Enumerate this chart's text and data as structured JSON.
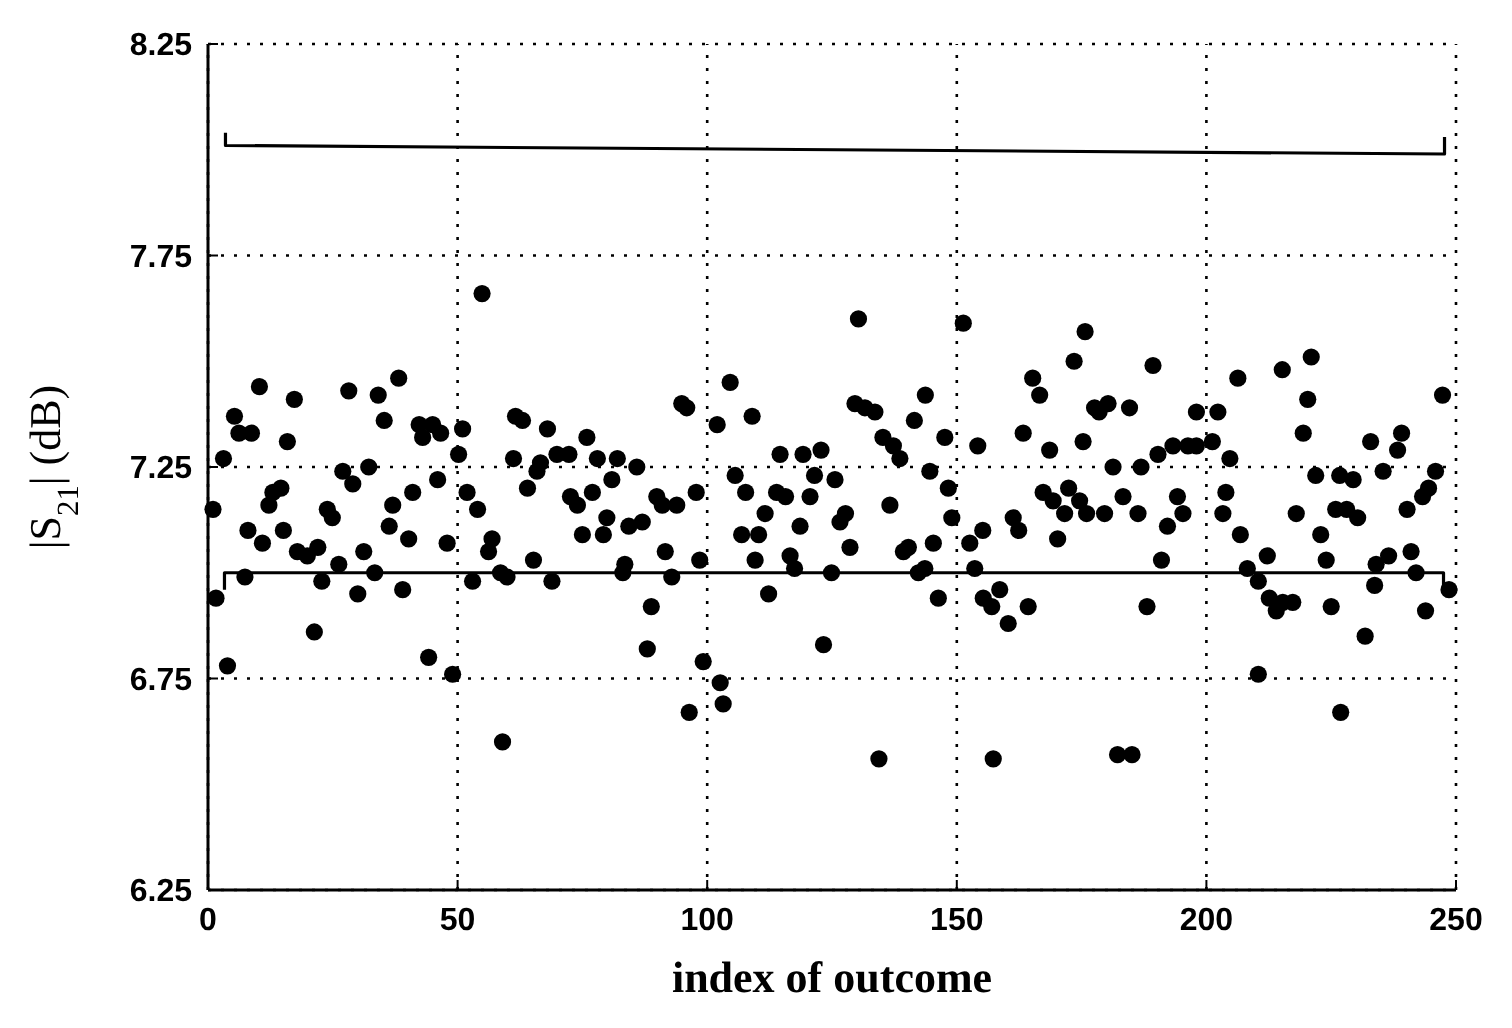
{
  "chart_data": {
    "type": "scatter",
    "xlabel": "index of outcome",
    "ylabel": "|S$_{21}$| (dB)",
    "xlim": [
      0,
      250
    ],
    "ylim": [
      6.25,
      8.25
    ],
    "xticks": [
      0,
      50,
      100,
      150,
      200,
      250
    ],
    "yticks": [
      6.25,
      6.75,
      7.25,
      7.75,
      8.25
    ],
    "grid": true,
    "marker": "circle",
    "series": [
      {
        "color": "#000000",
        "x": [
          1.0,
          1.6,
          3.1,
          3.9,
          5.3,
          6.2,
          8.7,
          7.4,
          8.0,
          10.3,
          10.9,
          12.2,
          13.0,
          14.6,
          15.1,
          15.9,
          17.3,
          17.9,
          19.9,
          22.0,
          21.3,
          22.8,
          23.9,
          24.9,
          26.2,
          28.2,
          27.0,
          29.0,
          30.0,
          31.2,
          32.2,
          33.4,
          34.1,
          35.3,
          37.0,
          36.3,
          38.2,
          39.0,
          40.2,
          41.0,
          42.3,
          43.0,
          45.0,
          46.6,
          44.2,
          46.0,
          47.9,
          49.0,
          54.9,
          51.0,
          50.2,
          51.9,
          54.0,
          53.0,
          56.9,
          56.2,
          58.6,
          59.9,
          59.0,
          61.6,
          63.0,
          61.2,
          64.0,
          65.9,
          66.6,
          68.0,
          65.2,
          68.9,
          69.9,
          72.3,
          72.6,
          74.0,
          75.9,
          75.0,
          77.0,
          78.0,
          79.9,
          79.2,
          80.9,
          82.0,
          83.5,
          83.1,
          84.3,
          85.9,
          87.0,
          88.8,
          88.0,
          89.9,
          91.0,
          93.9,
          91.6,
          92.9,
          94.9,
          95.9,
          97.8,
          98.5,
          99.2,
          96.4,
          102.6,
          103.2,
          104.6,
          102.0,
          109.0,
          105.6,
          107.7,
          106.9,
          110.3,
          111.6,
          109.6,
          112.3,
          114.6,
          113.9,
          115.7,
          118.6,
          116.6,
          117.5,
          119.2,
          120.6,
          121.5,
          122.8,
          123.3,
          124.9,
          125.6,
          126.6,
          127.7,
          128.6,
          130.3,
          129.6,
          131.6,
          133.6,
          134.4,
          135.2,
          137.3,
          138.6,
          136.6,
          139.3,
          140.3,
          141.5,
          143.7,
          142.3,
          143.6,
          144.6,
          145.3,
          146.3,
          147.6,
          148.3,
          149.0,
          151.3,
          154.2,
          152.6,
          155.2,
          153.6,
          155.3,
          158.6,
          157.0,
          160.3,
          157.3,
          163.3,
          165.2,
          166.6,
          168.6,
          161.3,
          162.4,
          164.3,
          167.3,
          169.3,
          172.4,
          171.6,
          170.2,
          173.5,
          175.7,
          174.6,
          176.0,
          175.3,
          177.6,
          178.5,
          180.3,
          179.6,
          181.3,
          182.2,
          185.1,
          183.3,
          184.6,
          186.3,
          186.9,
          188.1,
          189.3,
          190.3,
          191.0,
          192.2,
          193.3,
          194.2,
          195.3,
          196.3,
          198.0,
          198.0,
          202.3,
          201.2,
          204.7,
          206.3,
          203.9,
          203.3,
          206.8,
          208.2,
          210.4,
          212.2,
          212.6,
          214.0,
          217.3,
          215.3,
          210.4,
          215.2,
          221.0,
          220.3,
          219.4,
          218.0,
          221.9,
          222.9,
          224.0,
          225.0,
          226.9,
          225.9,
          226.7,
          229.4,
          228.1,
          230.3,
          231.8,
          232.9,
          233.7,
          234.0,
          235.4,
          236.5,
          238.3,
          239.1,
          240.2,
          241.0,
          242.0,
          243.9,
          243.3,
          244.5,
          245.9,
          247.3,
          248.6
        ],
        "values": [
          7.15,
          6.94,
          7.27,
          6.78,
          7.37,
          7.33,
          7.33,
          6.99,
          7.1,
          7.44,
          7.07,
          7.16,
          7.19,
          7.2,
          7.1,
          7.31,
          7.41,
          7.05,
          7.04,
          7.06,
          6.86,
          6.98,
          7.15,
          7.13,
          7.02,
          7.43,
          7.24,
          7.21,
          6.95,
          7.05,
          7.25,
          7.0,
          7.42,
          7.36,
          7.16,
          7.11,
          7.46,
          6.96,
          7.08,
          7.19,
          7.35,
          7.32,
          7.35,
          7.33,
          6.8,
          7.22,
          7.07,
          6.76,
          7.66,
          7.34,
          7.28,
          7.19,
          7.15,
          6.98,
          7.08,
          7.05,
          7.0,
          6.99,
          6.6,
          7.37,
          7.36,
          7.27,
          7.2,
          7.24,
          7.26,
          7.34,
          7.03,
          6.98,
          7.28,
          7.28,
          7.18,
          7.16,
          7.32,
          7.09,
          7.19,
          7.27,
          7.13,
          7.09,
          7.22,
          7.27,
          7.02,
          7.0,
          7.11,
          7.25,
          7.12,
          6.92,
          6.82,
          7.18,
          7.16,
          7.16,
          7.05,
          6.99,
          7.4,
          7.39,
          7.19,
          7.03,
          6.79,
          6.67,
          6.74,
          6.69,
          7.45,
          7.35,
          7.37,
          7.23,
          7.19,
          7.09,
          7.09,
          7.14,
          7.03,
          6.95,
          7.28,
          7.19,
          7.18,
          7.11,
          7.04,
          7.01,
          7.28,
          7.18,
          7.23,
          7.29,
          6.83,
          7.0,
          7.22,
          7.12,
          7.14,
          7.06,
          7.6,
          7.4,
          7.39,
          7.38,
          6.56,
          7.32,
          7.3,
          7.27,
          7.16,
          7.05,
          7.06,
          7.36,
          7.42,
          7.0,
          7.01,
          7.24,
          7.07,
          6.94,
          7.32,
          7.2,
          7.13,
          7.59,
          7.3,
          7.07,
          7.1,
          7.01,
          6.94,
          6.96,
          6.92,
          6.88,
          6.56,
          7.33,
          7.46,
          7.42,
          7.29,
          7.13,
          7.1,
          6.92,
          7.19,
          7.17,
          7.2,
          7.14,
          7.08,
          7.5,
          7.57,
          7.17,
          7.14,
          7.31,
          7.39,
          7.38,
          7.4,
          7.14,
          7.25,
          6.57,
          6.57,
          7.18,
          7.39,
          7.14,
          7.25,
          6.92,
          7.49,
          7.28,
          7.03,
          7.11,
          7.3,
          7.18,
          7.14,
          7.3,
          7.38,
          7.3,
          7.38,
          7.31,
          7.27,
          7.46,
          7.19,
          7.14,
          7.09,
          7.01,
          6.98,
          7.04,
          6.94,
          6.91,
          6.93,
          6.93,
          6.76,
          7.48,
          7.51,
          7.41,
          7.33,
          7.14,
          7.23,
          7.09,
          7.03,
          6.92,
          6.67,
          7.15,
          7.23,
          7.22,
          7.15,
          7.13,
          6.85,
          7.31,
          6.97,
          7.02,
          7.24,
          7.04,
          7.29,
          7.33,
          7.15,
          7.05,
          7.0,
          6.91,
          7.18,
          7.2,
          7.24,
          7.42,
          6.96
        ]
      },
      {
        "type": "line",
        "color": "#000000",
        "marker": "none",
        "x": [
          3.5,
          3.5,
          247.7,
          247.7
        ],
        "values": [
          8.04,
          8.01,
          7.99,
          8.03
        ]
      },
      {
        "type": "line",
        "color": "#000000",
        "marker": "none",
        "x": [
          3.3,
          3.3,
          247.5,
          247.5
        ],
        "values": [
          6.96,
          7.0,
          7.0,
          6.97
        ]
      }
    ]
  }
}
